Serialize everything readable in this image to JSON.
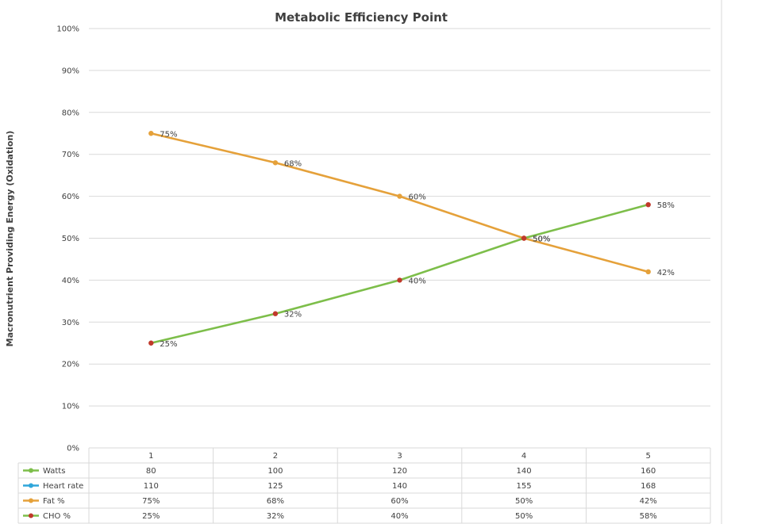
{
  "chart_data": {
    "type": "line",
    "title": "Metabolic Efficiency Point",
    "xlabel": "",
    "ylabel": "Macronutrient Providing Energy (Oxidation)",
    "ylim": [
      0,
      100
    ],
    "y_ticks": [
      "0%",
      "10%",
      "20%",
      "30%",
      "40%",
      "50%",
      "60%",
      "70%",
      "80%",
      "90%",
      "100%"
    ],
    "categories": [
      "1",
      "2",
      "3",
      "4",
      "5"
    ],
    "grid": true,
    "legend": "data-table",
    "series": [
      {
        "name": "Fat %",
        "color": "#E5A13A",
        "marker_colors": [
          "#E5A13A",
          "#E5A13A",
          "#E5A13A",
          "#C0392B",
          "#E5A13A"
        ],
        "values": [
          75,
          68,
          60,
          50,
          42
        ],
        "labels": [
          "75%",
          "68%",
          "60%",
          "50%",
          "42%"
        ],
        "plotted": true
      },
      {
        "name": "CHO %",
        "color": "#7DBE4A",
        "marker_colors": [
          "#C0392B",
          "#C0392B",
          "#C0392B",
          "#C0392B",
          "#C0392B"
        ],
        "values": [
          25,
          32,
          40,
          50,
          58
        ],
        "labels": [
          "25%",
          "32%",
          "40%",
          "50%",
          "58%"
        ],
        "plotted": true
      }
    ],
    "table": {
      "rows": [
        {
          "name": "Watts",
          "color": "#7DBE4A",
          "cells": [
            "80",
            "100",
            "120",
            "140",
            "160"
          ]
        },
        {
          "name": "Heart rate",
          "color": "#2FA6DA",
          "cells": [
            "110",
            "125",
            "140",
            "155",
            "168"
          ]
        },
        {
          "name": "Fat %",
          "color": "#E5A13A",
          "cells": [
            "75%",
            "68%",
            "60%",
            "50%",
            "42%"
          ]
        },
        {
          "name": "CHO %",
          "color": "#7DBE4A",
          "marker_color": "#C0392B",
          "cells": [
            "25%",
            "32%",
            "40%",
            "50%",
            "58%"
          ]
        }
      ]
    }
  }
}
